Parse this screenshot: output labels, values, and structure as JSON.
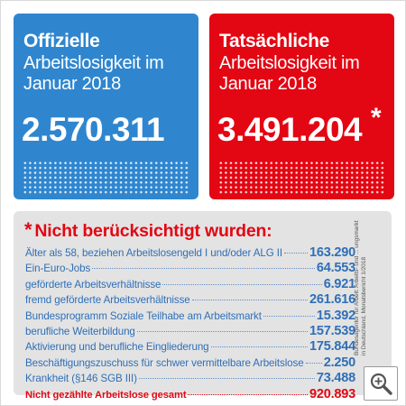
{
  "official": {
    "heading": "Offizielle",
    "subtitle": "Arbeitslosigkeit im Januar 2018",
    "value": "2.570.311",
    "color": "#2f86cf"
  },
  "actual": {
    "heading": "Tatsächliche",
    "subtitle": "Arbeitslosigkeit im Januar 2018",
    "value": "3.491.204",
    "asterisk": "*",
    "color": "#e30613"
  },
  "panel": {
    "star": "*",
    "title": "Nicht berücksichtigt wurden:",
    "rows": [
      {
        "label": "Älter als 58, beziehen Arbeitslosengeld I und/oder ALG II",
        "value": "163.290"
      },
      {
        "label": "Ein-Euro-Jobs",
        "value": "64.553"
      },
      {
        "label": "geförderte Arbeitsverhältnisse",
        "value": "6.921"
      },
      {
        "label": "fremd geförderte Arbeitsverhältnisse",
        "value": "261.616"
      },
      {
        "label": "Bundesprogramm Soziale Teilhabe am Arbeitsmarkt",
        "value": "15.392"
      },
      {
        "label": "berufliche Weiterbildung",
        "value": "157.539"
      },
      {
        "label": "Aktivierung und berufliche Eingliederung",
        "value": "175.844"
      },
      {
        "label": "Beschäftigungszuschuss für schwer vermittelbare Arbeitslose",
        "value": "2.250"
      },
      {
        "label": "Krankheit (§146 SGB III)",
        "value": "73.488"
      }
    ],
    "total": {
      "label": "Nicht gezählte Arbeitslose gesamt",
      "value": "920.893"
    }
  },
  "source": "Bundesagentur für Arbeit: Arbeits- und ... ungsmarkt in Deutschland, Monatsbericht 1/2018",
  "zoom": {
    "icon": "zoom-in-icon"
  }
}
